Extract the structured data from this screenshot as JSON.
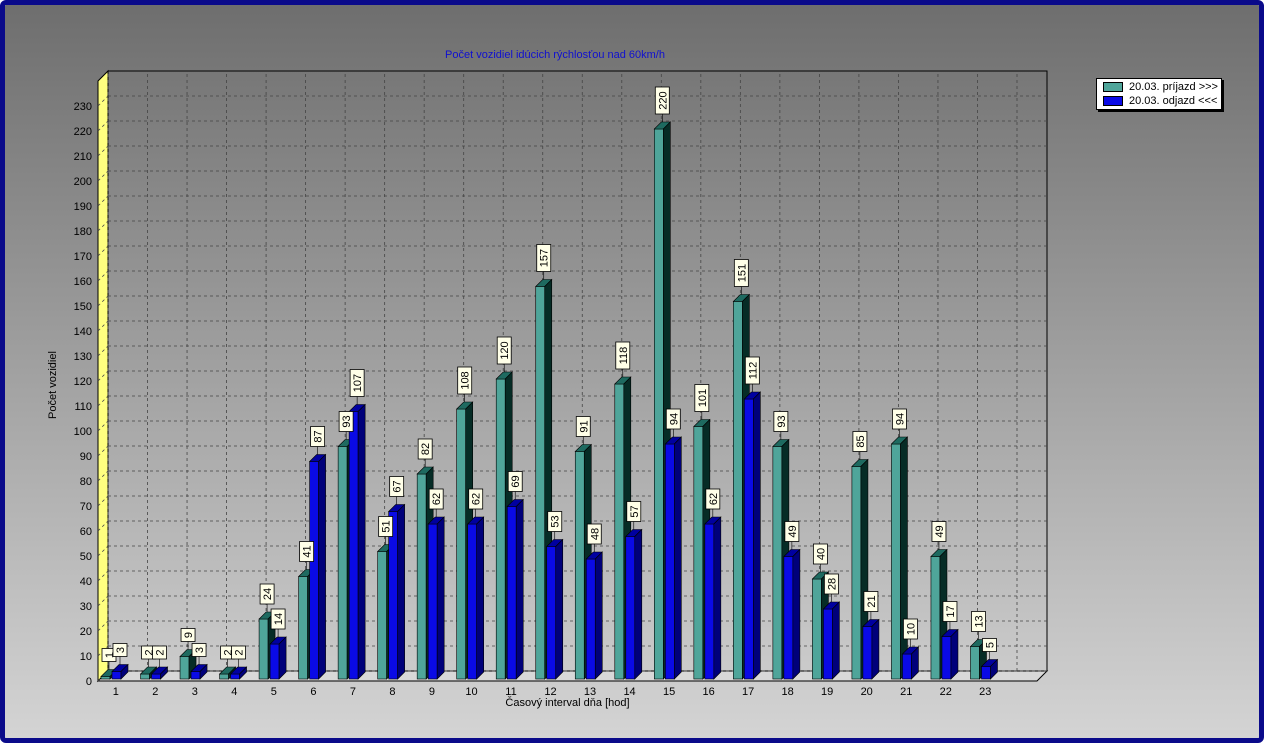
{
  "colors": {
    "background_top": "#6e6e6e",
    "background_bottom": "#d4d4d4",
    "frame": "#0a0a8a",
    "wall": "#ffff80",
    "series_prijazd_front": "#4fa59a",
    "series_prijazd_top": "#1e6a60",
    "series_prijazd_side": "#062c26",
    "series_odjazd_front": "#0a0ae6",
    "series_odjazd_top": "#0000a0",
    "series_odjazd_side": "#00007a",
    "title": "#1010d0"
  },
  "chart_data": {
    "type": "bar",
    "title": "Počet vozidiel idúcich rýchlosťou nad 60km/h",
    "xlabel": "Časový interval dňa [hod]",
    "ylabel": "Počet vozidiel",
    "ylim": [
      0,
      230
    ],
    "ytick_step": 10,
    "grid": true,
    "legend_position": "top-right",
    "categories": [
      "1",
      "2",
      "3",
      "4",
      "5",
      "6",
      "7",
      "8",
      "9",
      "10",
      "11",
      "12",
      "13",
      "14",
      "15",
      "16",
      "17",
      "18",
      "19",
      "20",
      "21",
      "22",
      "23"
    ],
    "series": [
      {
        "name": "20.03.  príjazd >>>",
        "values": [
          1,
          2,
          9,
          2,
          24,
          41,
          93,
          51,
          82,
          108,
          120,
          157,
          91,
          118,
          220,
          101,
          151,
          93,
          40,
          85,
          94,
          49,
          13
        ]
      },
      {
        "name": "20.03.  odjazd <<<",
        "values": [
          3,
          2,
          3,
          2,
          14,
          87,
          107,
          67,
          62,
          62,
          69,
          53,
          48,
          57,
          94,
          62,
          112,
          49,
          28,
          21,
          10,
          17,
          5
        ]
      }
    ]
  }
}
